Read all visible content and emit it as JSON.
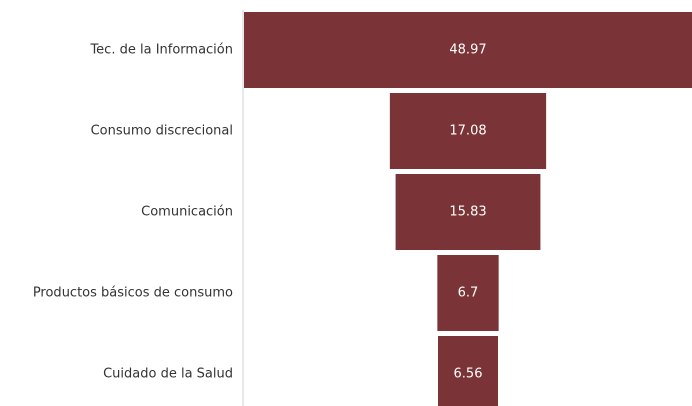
{
  "chart_data": {
    "type": "funnel",
    "categories": [
      "Tec. de la Información",
      "Consumo discrecional",
      "Comunicación",
      "Productos básicos de consumo",
      "Cuidado de la Salud"
    ],
    "values": [
      48.97,
      17.08,
      15.83,
      6.7,
      6.56
    ],
    "color": "#7a3336"
  }
}
